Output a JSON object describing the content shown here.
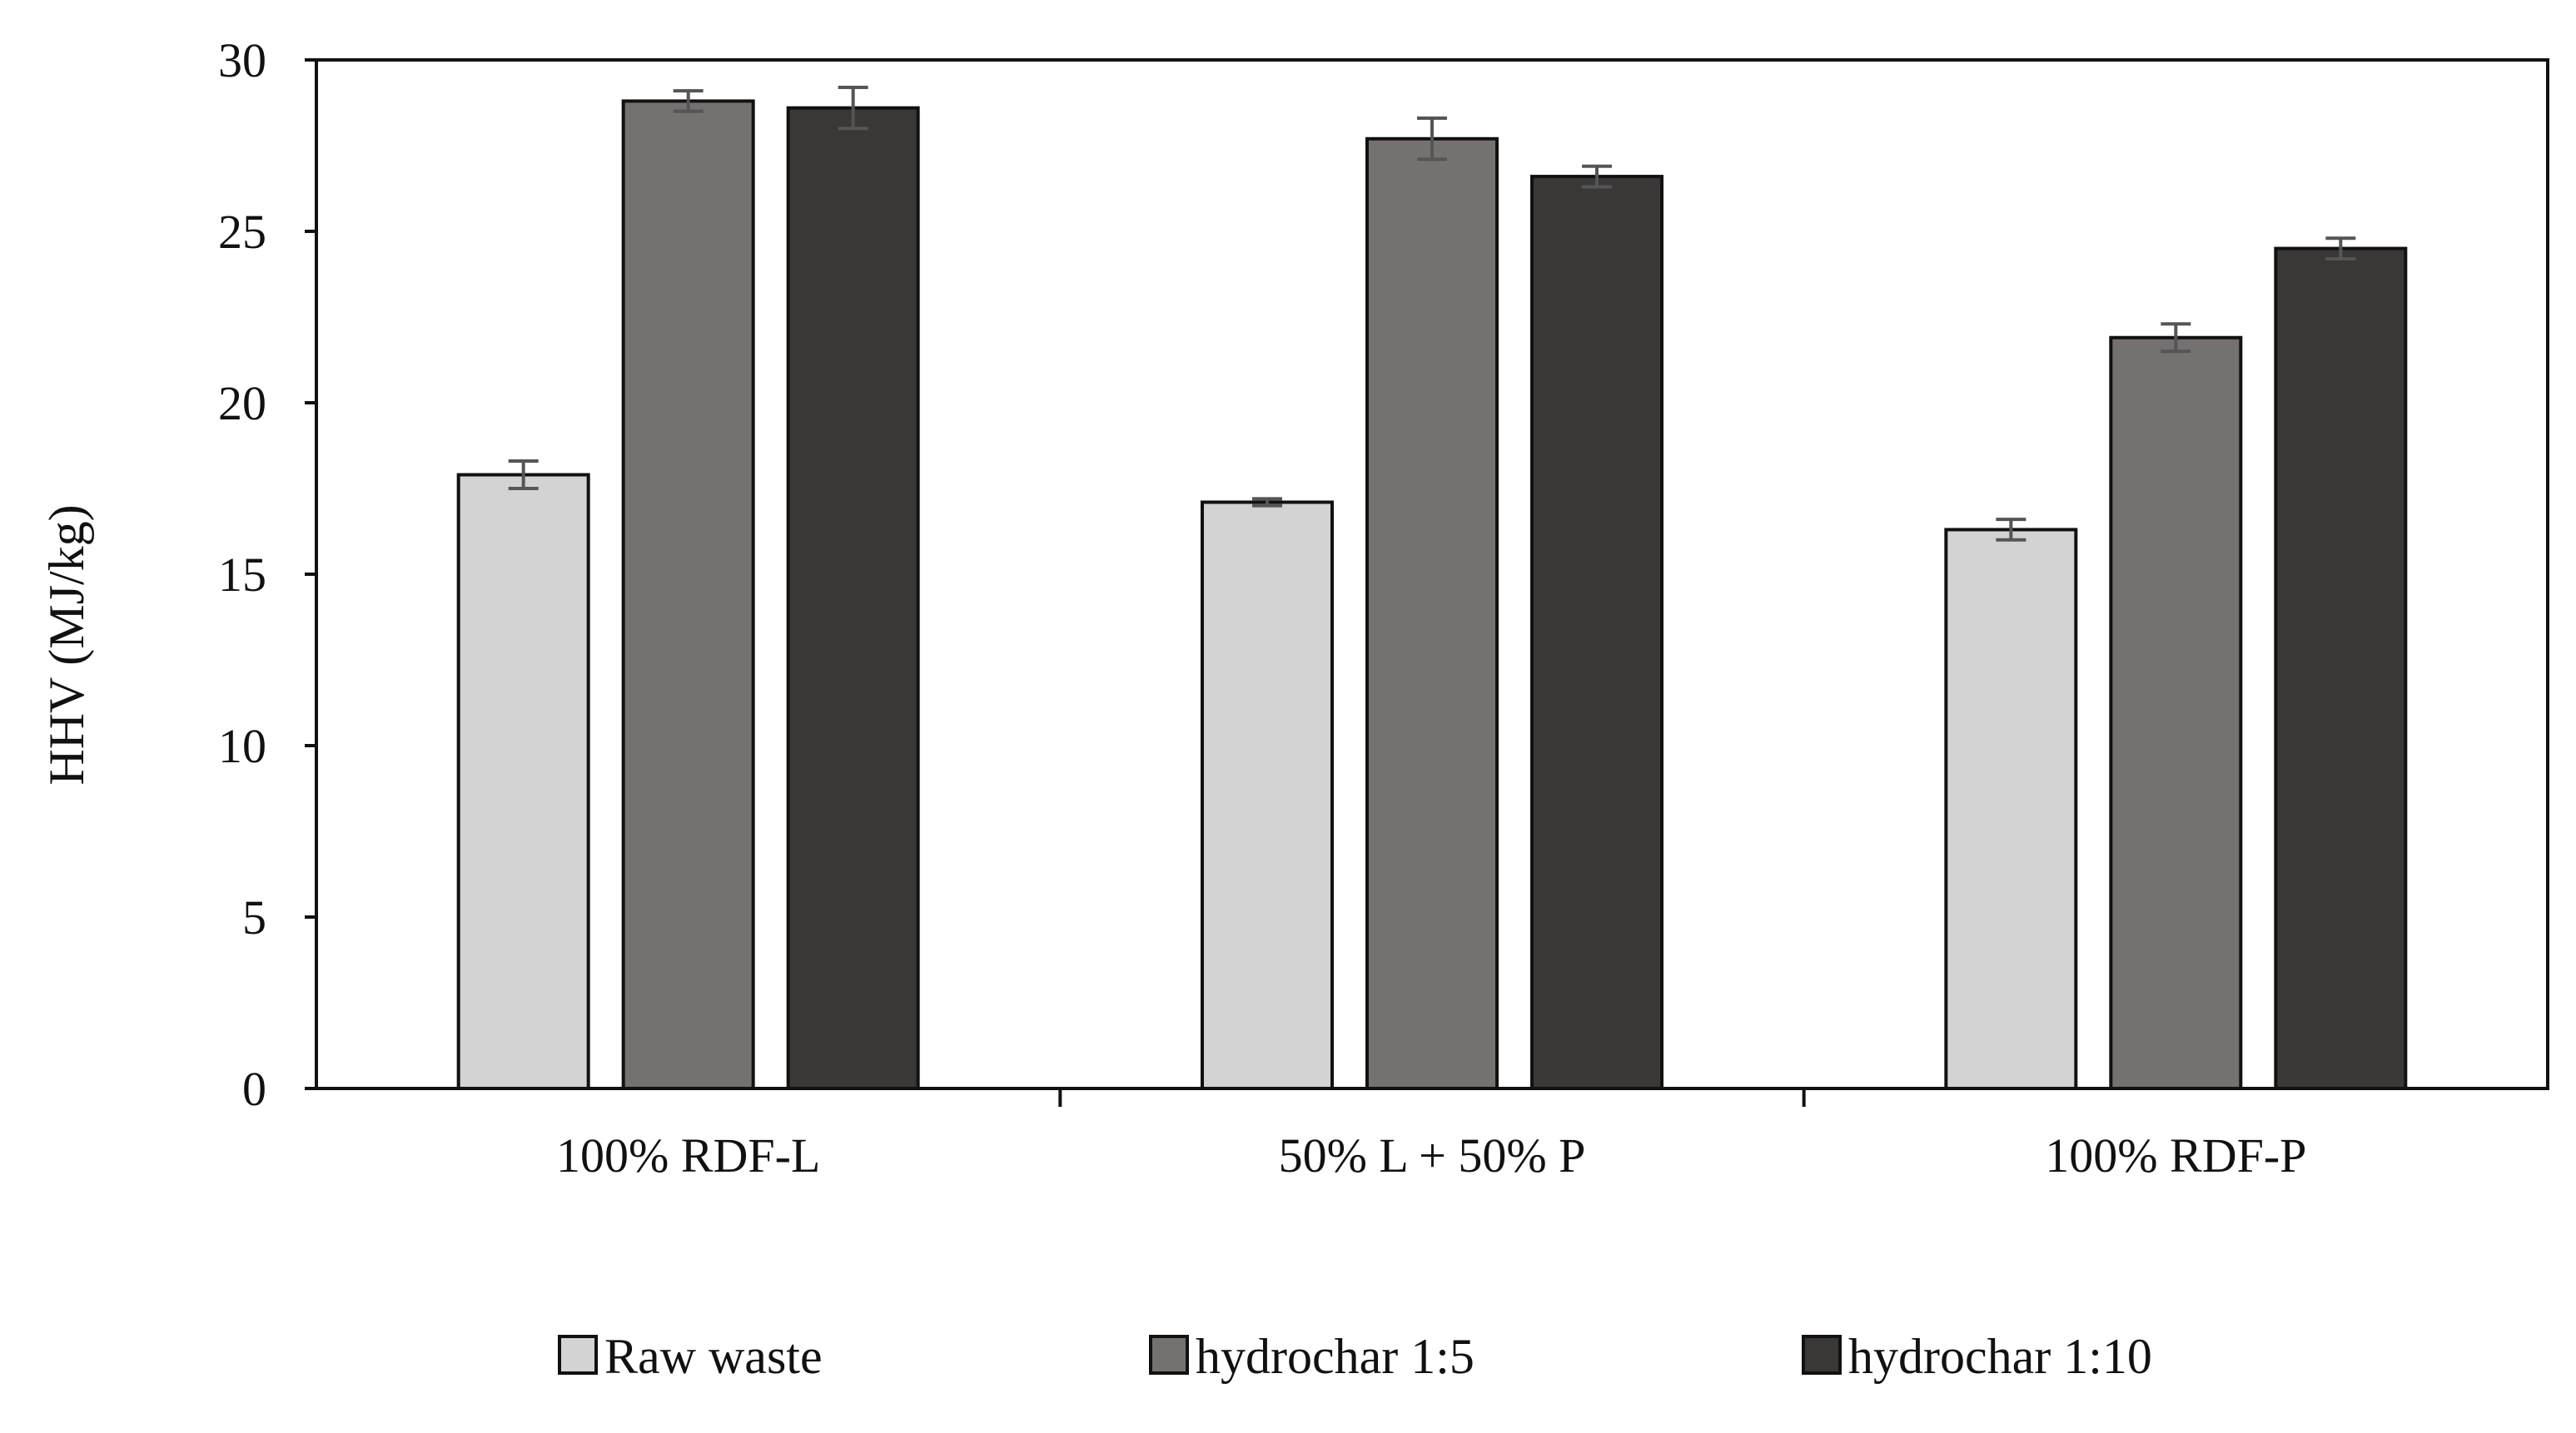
{
  "chart_data": {
    "type": "bar",
    "ylabel": "HHV (MJ/kg)",
    "ylim": [
      0,
      30
    ],
    "yticks": [
      0,
      5,
      10,
      15,
      20,
      25,
      30
    ],
    "categories": [
      "100% RDF-L",
      "50% L + 50% P",
      "100% RDF-P"
    ],
    "series": [
      {
        "name": "Raw waste",
        "color": "#d3d3d3",
        "values": [
          17.9,
          17.1,
          16.3
        ],
        "errors": [
          0.4,
          0.1,
          0.3
        ]
      },
      {
        "name": "hydrochar 1:5",
        "color": "#767171",
        "values": [
          28.8,
          27.7,
          21.9
        ],
        "errors": [
          0.3,
          0.6,
          0.4
        ]
      },
      {
        "name": "hydrochar 1:10",
        "color": "#3a3837",
        "values": [
          28.6,
          26.6,
          24.5
        ],
        "errors": [
          0.6,
          0.3,
          0.3
        ]
      }
    ],
    "grid": false,
    "legend": "bottom"
  }
}
